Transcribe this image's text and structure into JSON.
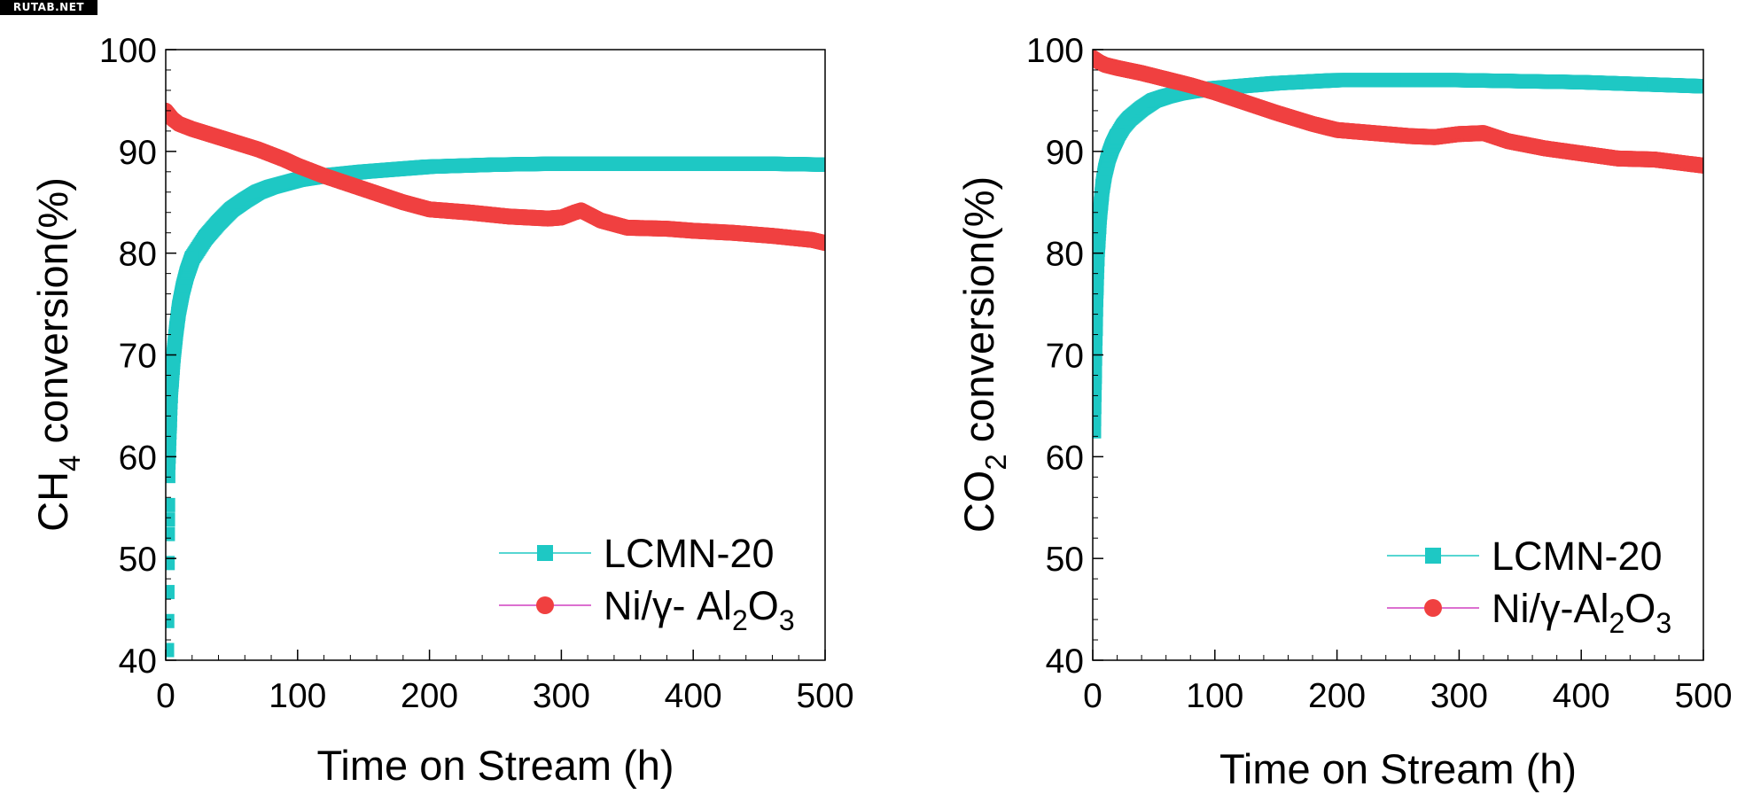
{
  "watermark": "RUTAB.NET",
  "chart_data": [
    {
      "type": "scatter",
      "xlabel": "Time on Stream (h)",
      "ylabel_main": "CH",
      "ylabel_sub": "4",
      "ylabel_rest": " conversion(%)",
      "xlim": [
        0,
        500
      ],
      "ylim": [
        40,
        100
      ],
      "x_ticks": [
        0,
        100,
        200,
        300,
        400,
        500
      ],
      "y_ticks": [
        40,
        50,
        60,
        70,
        80,
        90,
        100
      ],
      "grid": false,
      "legend_position": "bottom-right",
      "series": [
        {
          "name": "LCMN-20",
          "color": "#1ec8c4",
          "marker": "square",
          "x": [
            1,
            2,
            4,
            6,
            8,
            10,
            13,
            16,
            20,
            25,
            30,
            40,
            50,
            60,
            70,
            80,
            100,
            120,
            150,
            200,
            250,
            300,
            350,
            400,
            450,
            500
          ],
          "y": [
            41,
            59,
            66.5,
            70,
            72.5,
            74.5,
            76.5,
            78,
            79.5,
            80.5,
            81.5,
            83,
            84.3,
            85.2,
            86,
            86.5,
            87.2,
            87.6,
            88,
            88.5,
            88.7,
            88.8,
            88.8,
            88.8,
            88.8,
            88.7
          ]
        },
        {
          "name_main": "Ni/γ- Al",
          "name_sub1": "2",
          "name_mid": "O",
          "name_sub2": "3",
          "color": "#f04040",
          "marker": "circle",
          "x": [
            0,
            5,
            10,
            20,
            30,
            50,
            70,
            90,
            100,
            120,
            150,
            180,
            200,
            230,
            260,
            290,
            300,
            310,
            315,
            330,
            350,
            380,
            400,
            430,
            460,
            490,
            500
          ],
          "y": [
            94,
            93.2,
            92.7,
            92.2,
            91.8,
            91,
            90.2,
            89.2,
            88.6,
            87.6,
            86.3,
            85,
            84.3,
            84,
            83.6,
            83.4,
            83.5,
            84,
            84.2,
            83.2,
            82.5,
            82.4,
            82.2,
            82,
            81.7,
            81.3,
            81
          ]
        }
      ]
    },
    {
      "type": "scatter",
      "xlabel": "Time on Stream (h)",
      "ylabel_main": "CO",
      "ylabel_sub": "2",
      "ylabel_rest": " conversion(%)",
      "xlim": [
        0,
        500
      ],
      "ylim": [
        40,
        100
      ],
      "x_ticks": [
        0,
        100,
        200,
        300,
        400,
        500
      ],
      "y_ticks": [
        40,
        50,
        60,
        70,
        80,
        90,
        100
      ],
      "grid": false,
      "legend_position": "bottom-right",
      "series": [
        {
          "name": "LCMN-20",
          "color": "#1ec8c4",
          "marker": "square",
          "x": [
            1,
            2,
            3,
            4,
            6,
            8,
            10,
            13,
            16,
            20,
            25,
            30,
            40,
            50,
            60,
            70,
            80,
            100,
            150,
            200,
            250,
            300,
            350,
            400,
            450,
            500
          ],
          "y": [
            62.5,
            70,
            76,
            80,
            84,
            86.5,
            88,
            89.5,
            90.5,
            91.5,
            92.5,
            93.2,
            94.2,
            95,
            95.4,
            95.7,
            95.9,
            96.2,
            96.7,
            97,
            97,
            97,
            96.9,
            96.8,
            96.6,
            96.4
          ]
        },
        {
          "name_main": "Ni/γ-Al",
          "name_sub1": "2",
          "name_mid": "O",
          "name_sub2": "3",
          "color": "#f04040",
          "marker": "circle",
          "x": [
            0,
            5,
            10,
            20,
            40,
            60,
            80,
            100,
            120,
            150,
            180,
            200,
            230,
            260,
            280,
            300,
            320,
            340,
            370,
            400,
            430,
            460,
            480,
            500
          ],
          "y": [
            99.2,
            98.8,
            98.5,
            98.2,
            97.7,
            97.1,
            96.5,
            95.8,
            95,
            93.8,
            92.7,
            92.1,
            91.8,
            91.5,
            91.4,
            91.7,
            91.8,
            91,
            90.3,
            89.8,
            89.3,
            89.2,
            88.9,
            88.6
          ]
        }
      ]
    }
  ]
}
